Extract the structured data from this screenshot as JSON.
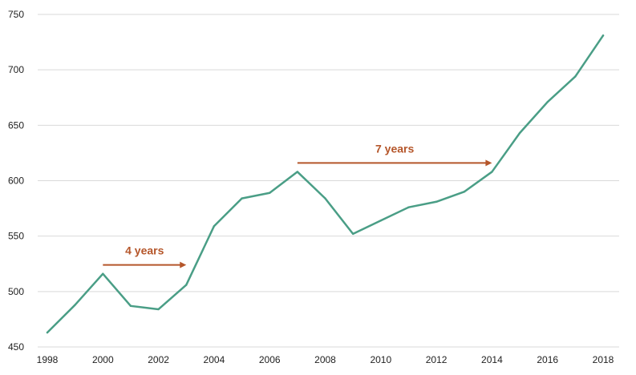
{
  "chart_data": {
    "type": "line",
    "title": "",
    "xlabel": "",
    "ylabel": "",
    "x": [
      1998,
      1999,
      2000,
      2001,
      2002,
      2003,
      2004,
      2005,
      2006,
      2007,
      2008,
      2009,
      2010,
      2011,
      2012,
      2013,
      2014,
      2015,
      2016,
      2017,
      2018
    ],
    "series": [
      {
        "values": [
          463,
          488,
          516,
          487,
          484,
          506,
          559,
          584,
          589,
          608,
          584,
          552,
          564,
          576,
          581,
          590,
          608,
          643,
          671,
          694,
          731
        ]
      }
    ],
    "xlim": [
      1998,
      2018
    ],
    "ylim": [
      450,
      750
    ],
    "x_ticks": [
      "1998",
      "2000",
      "2002",
      "2004",
      "2006",
      "2008",
      "2010",
      "2012",
      "2014",
      "2016",
      "2018"
    ],
    "y_ticks": [
      "450",
      "500",
      "550",
      "600",
      "650",
      "700",
      "750"
    ],
    "grid": "horizontal",
    "line_color": "#4a9e86",
    "annotations": [
      {
        "label": "4 years",
        "x_start": 2000,
        "x_end": 2003,
        "y": 524,
        "color": "#b5562a"
      },
      {
        "label": "7 years",
        "x_start": 2007,
        "x_end": 2014,
        "y": 616,
        "color": "#b5562a"
      }
    ]
  }
}
